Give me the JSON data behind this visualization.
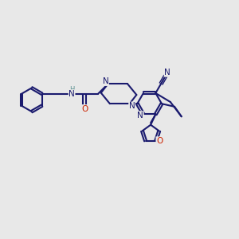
{
  "bg_color": "#e8e8e8",
  "bond_color": "#1a1a6e",
  "bond_width": 1.5,
  "atom_colors": {
    "N": "#1a1a6e",
    "O": "#cc2200",
    "H": "#5a9090"
  },
  "font_size": 7.5,
  "fig_width": 3.0,
  "fig_height": 3.0,
  "xlim": [
    0,
    12
  ],
  "ylim": [
    0,
    12
  ]
}
